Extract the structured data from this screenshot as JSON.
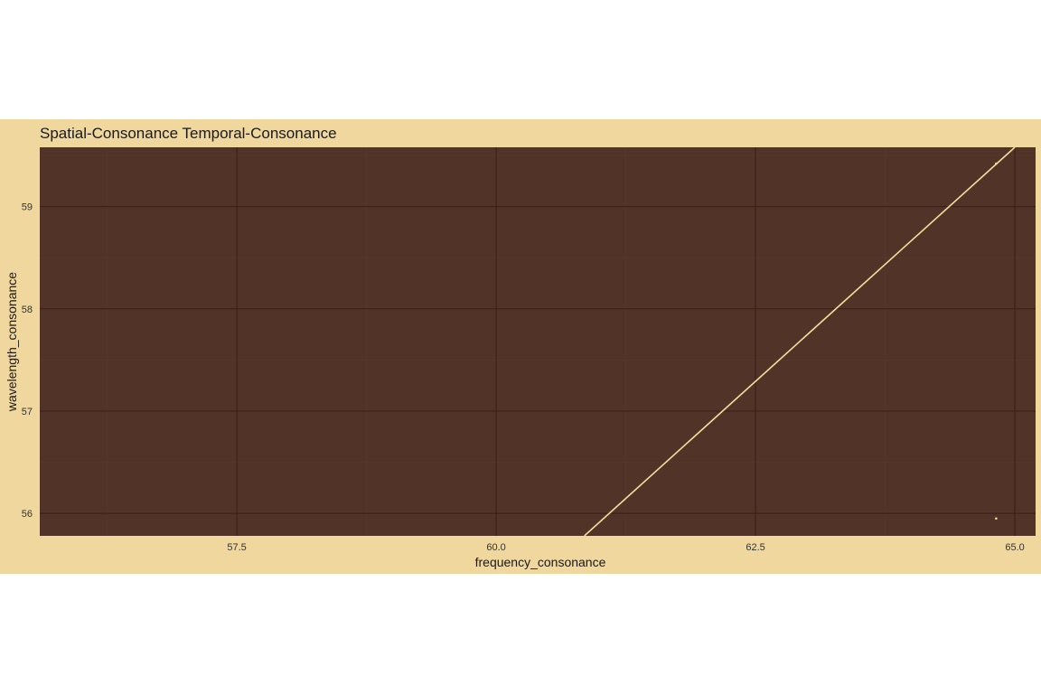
{
  "chart_data": {
    "type": "scatter",
    "title": "Spatial-Consonance Temporal-Consonance",
    "xlabel": "frequency_consonance",
    "ylabel": "wavelength_consonance",
    "xlim": [
      55.6,
      65.2
    ],
    "ylim": [
      55.78,
      59.58
    ],
    "x_ticks": [
      57.5,
      60.0,
      62.5,
      65.0
    ],
    "x_tick_labels": [
      "57.5",
      "60.0",
      "62.5",
      "65.0"
    ],
    "y_ticks": [
      56,
      57,
      58,
      59
    ],
    "y_tick_labels": [
      "56",
      "57",
      "58",
      "59"
    ],
    "points": [
      {
        "x": 64.82,
        "y": 55.95
      },
      {
        "x": 64.82,
        "y": 59.42
      }
    ],
    "fit_line": {
      "x": [
        60.85,
        65.0
      ],
      "y": [
        55.78,
        59.58
      ]
    },
    "grid": true,
    "legend": "none",
    "colors": {
      "background": "#efd79d",
      "panel": "#513328",
      "grid_major": "#3a1d17",
      "grid_minor": "#5a3a2e",
      "line": "#f5dc9c",
      "point": "#f5dc9c"
    }
  }
}
